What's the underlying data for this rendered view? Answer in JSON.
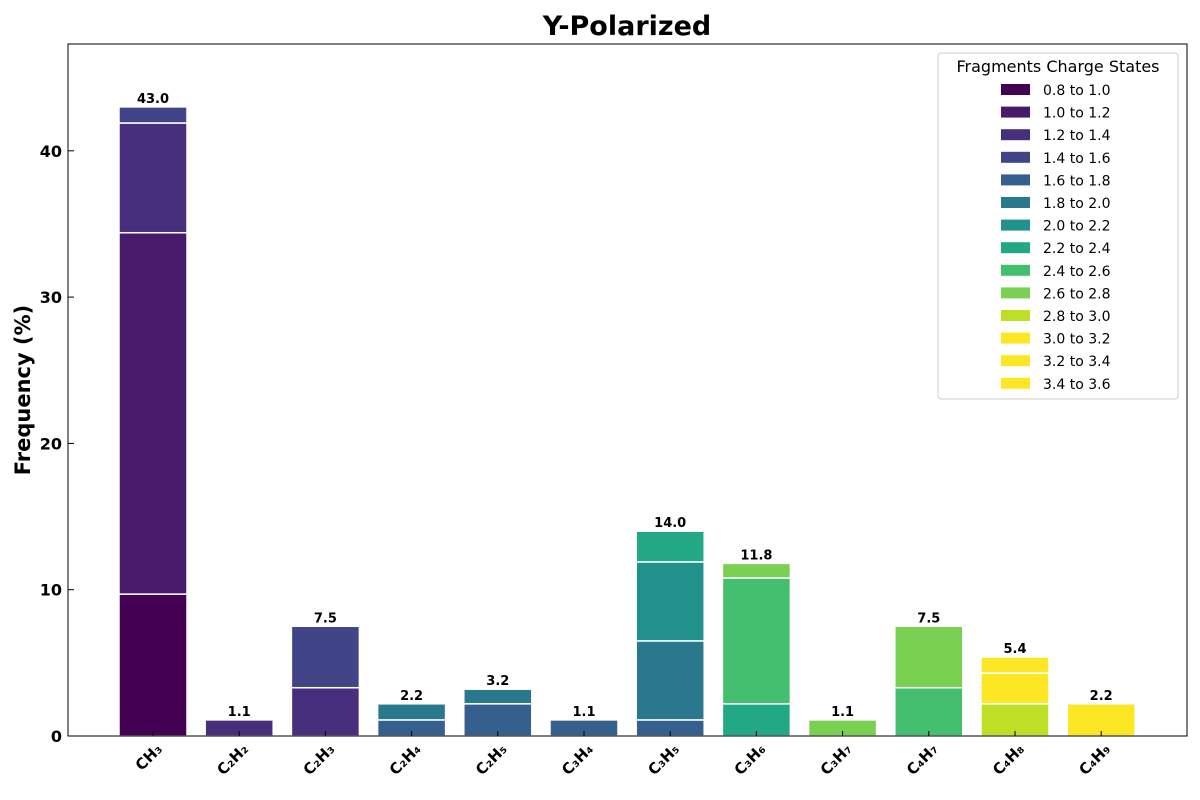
{
  "chart_data": {
    "type": "bar",
    "stacked": true,
    "title": "Y-Polarized",
    "ylabel": "Frequency (%)",
    "xlabel": "",
    "ylim": [
      0,
      47.3
    ],
    "yticks": [
      0,
      10,
      20,
      30,
      40
    ],
    "categories": [
      "CH₃",
      "C₂H₂",
      "C₂H₃",
      "C₂H₄",
      "C₂H₅",
      "C₃H₄",
      "C₃H₅",
      "C₃H₆",
      "C₃H₇",
      "C₄H₇",
      "C₄H₈",
      "C₄H₉"
    ],
    "totals_labels": [
      "43.0",
      "1.1",
      "7.5",
      "2.2",
      "3.2",
      "1.1",
      "14.0",
      "11.8",
      "1.1",
      "7.5",
      "5.4",
      "2.2"
    ],
    "legend_title": "Fragments Charge States",
    "legend_position": "top-right",
    "series": [
      {
        "name": "0.8 to 1.0",
        "color": "#440154",
        "values": [
          9.7,
          0,
          0,
          0,
          0,
          0,
          0,
          0,
          0,
          0,
          0,
          0
        ]
      },
      {
        "name": "1.0 to 1.2",
        "color": "#481a6c",
        "values": [
          24.7,
          0,
          0,
          0,
          0,
          0,
          0,
          0,
          0,
          0,
          0,
          0
        ]
      },
      {
        "name": "1.2 to 1.4",
        "color": "#472f7d",
        "values": [
          7.5,
          1.1,
          3.3,
          0,
          0,
          0,
          0,
          0,
          0,
          0,
          0,
          0
        ]
      },
      {
        "name": "1.4 to 1.6",
        "color": "#414487",
        "values": [
          1.1,
          0,
          4.2,
          0,
          0,
          0,
          0,
          0,
          0,
          0,
          0,
          0
        ]
      },
      {
        "name": "1.6 to 1.8",
        "color": "#35608d",
        "values": [
          0,
          0,
          0,
          1.1,
          2.2,
          1.1,
          1.1,
          0,
          0,
          0,
          0,
          0
        ]
      },
      {
        "name": "1.8 to 2.0",
        "color": "#2a788e",
        "values": [
          0,
          0,
          0,
          1.1,
          1.0,
          0,
          5.4,
          0,
          0,
          0,
          0,
          0
        ]
      },
      {
        "name": "2.0 to 2.2",
        "color": "#21918c",
        "values": [
          0,
          0,
          0,
          0,
          0,
          0,
          5.4,
          0,
          0,
          0,
          0,
          0
        ]
      },
      {
        "name": "2.2 to 2.4",
        "color": "#22a884",
        "values": [
          0,
          0,
          0,
          0,
          0,
          0,
          2.1,
          2.2,
          0,
          0,
          0,
          0
        ]
      },
      {
        "name": "2.4 to 2.6",
        "color": "#44bf70",
        "values": [
          0,
          0,
          0,
          0,
          0,
          0,
          0,
          8.6,
          0,
          3.3,
          0,
          0
        ]
      },
      {
        "name": "2.6 to 2.8",
        "color": "#7ad151",
        "values": [
          0,
          0,
          0,
          0,
          0,
          0,
          0,
          1.0,
          1.1,
          4.2,
          0,
          0
        ]
      },
      {
        "name": "2.8 to 3.0",
        "color": "#bddf26",
        "values": [
          0,
          0,
          0,
          0,
          0,
          0,
          0,
          0,
          0,
          0,
          2.2,
          0
        ]
      },
      {
        "name": "3.0 to 3.2",
        "color": "#fde725",
        "values": [
          0,
          0,
          0,
          0,
          0,
          0,
          0,
          0,
          0,
          0,
          2.1,
          0
        ]
      },
      {
        "name": "3.2 to 3.4",
        "color": "#fde725",
        "values": [
          0,
          0,
          0,
          0,
          0,
          0,
          0,
          0,
          0,
          0,
          1.1,
          0
        ]
      },
      {
        "name": "3.4 to 3.6",
        "color": "#fde725",
        "values": [
          0,
          0,
          0,
          0,
          0,
          0,
          0,
          0,
          0,
          0,
          0,
          2.2
        ]
      }
    ]
  }
}
